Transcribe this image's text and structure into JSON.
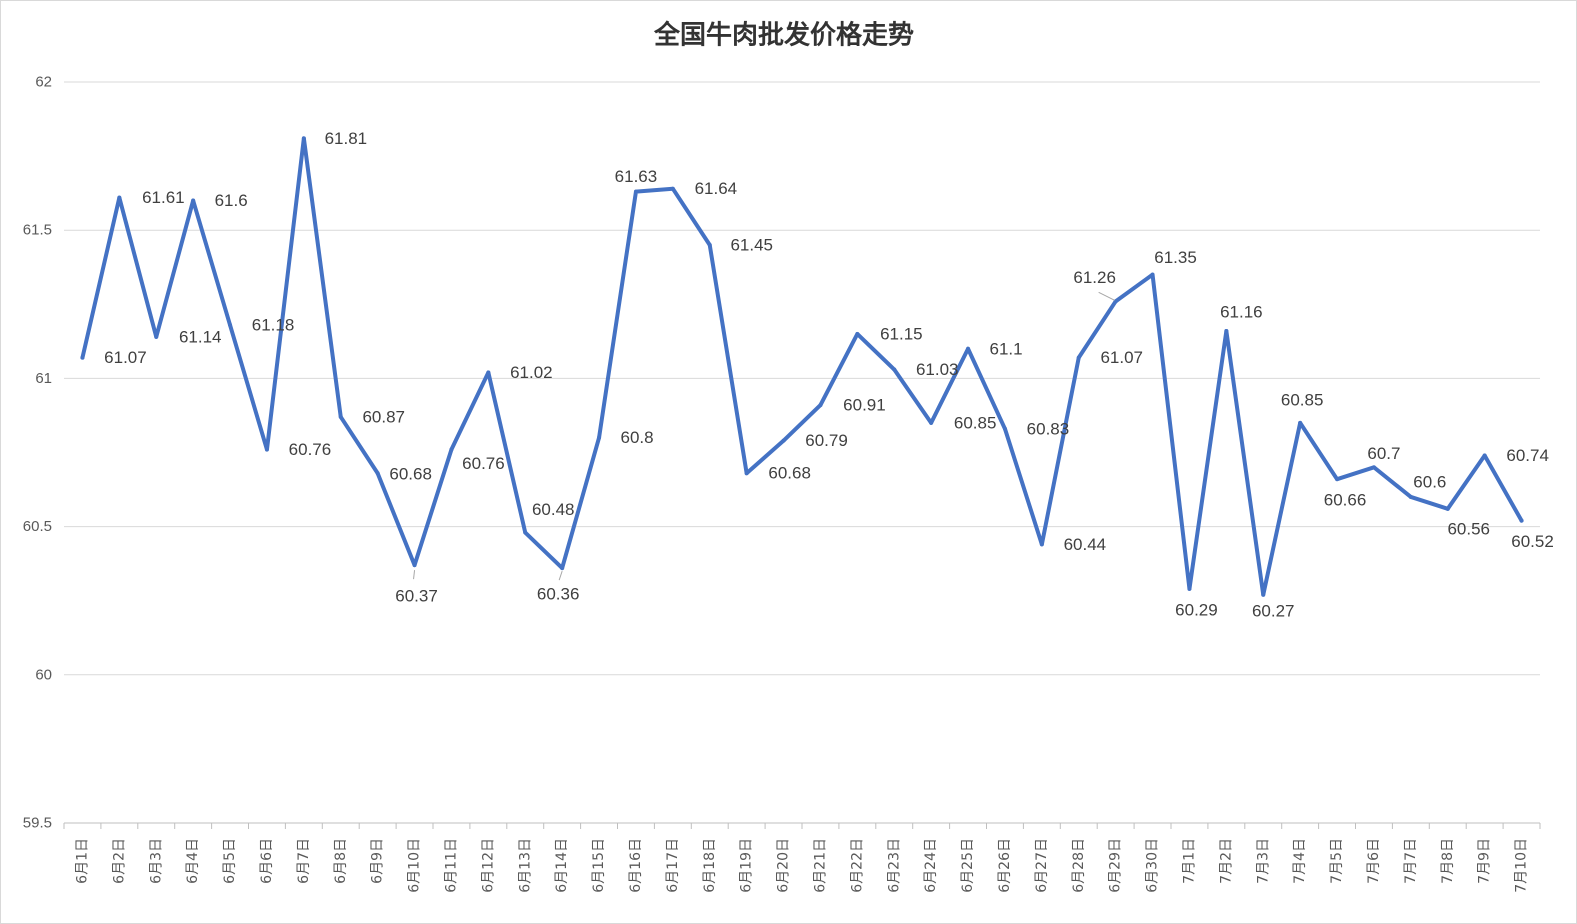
{
  "chart_data": {
    "type": "line",
    "title": "全国牛肉批发价格走势",
    "categories": [
      "6月1日",
      "6月2日",
      "6月3日",
      "6月4日",
      "6月5日",
      "6月6日",
      "6月7日",
      "6月8日",
      "6月9日",
      "6月10日",
      "6月11日",
      "6月12日",
      "6月13日",
      "6月14日",
      "6月15日",
      "6月16日",
      "6月17日",
      "6月18日",
      "6月19日",
      "6月20日",
      "6月21日",
      "6月22日",
      "6月23日",
      "6月24日",
      "6月25日",
      "6月26日",
      "6月27日",
      "6月28日",
      "6月29日",
      "6月30日",
      "7月1日",
      "7月2日",
      "7月3日",
      "7月4日",
      "7月5日",
      "7月6日",
      "7月7日",
      "7月8日",
      "7月9日",
      "7月10日"
    ],
    "series": [
      {
        "values": [
          61.07,
          61.61,
          61.14,
          61.6,
          61.18,
          60.76,
          61.81,
          60.87,
          60.68,
          60.37,
          60.76,
          61.02,
          60.48,
          60.36,
          60.8,
          61.63,
          61.64,
          61.45,
          60.68,
          60.79,
          60.91,
          61.15,
          61.03,
          60.85,
          61.1,
          60.83,
          60.44,
          61.07,
          61.26,
          61.35,
          60.29,
          61.16,
          60.27,
          60.85,
          60.66,
          60.7,
          60.6,
          60.56,
          60.74,
          60.52
        ],
        "data_labels": [
          "61.07",
          "61.61",
          "61.14",
          "61.6",
          "61.18",
          "60.76",
          "61.81",
          "60.87",
          "60.68",
          "60.37",
          "60.76",
          "61.02",
          "60.48",
          "60.36",
          "60.8",
          "61.63",
          "61.64",
          "61.45",
          "60.68",
          "60.79",
          "60.91",
          "61.15",
          "61.03",
          "60.85",
          "61.1",
          "60.83",
          "60.44",
          "61.07",
          "61.26",
          "61.35",
          "60.29",
          "61.16",
          "60.27",
          "60.85",
          "60.66",
          "60.7",
          "60.6",
          "60.56",
          "60.74",
          "60.52"
        ]
      }
    ],
    "ylim": [
      59.5,
      62
    ],
    "yticks": [
      59.5,
      60,
      60.5,
      61,
      61.5,
      62
    ],
    "ytick_labels": [
      "59.5",
      "60",
      "60.5",
      "61",
      "61.5",
      "62"
    ],
    "grid": true,
    "legend": "none"
  },
  "colors": {
    "series_line": "#4472C4"
  }
}
